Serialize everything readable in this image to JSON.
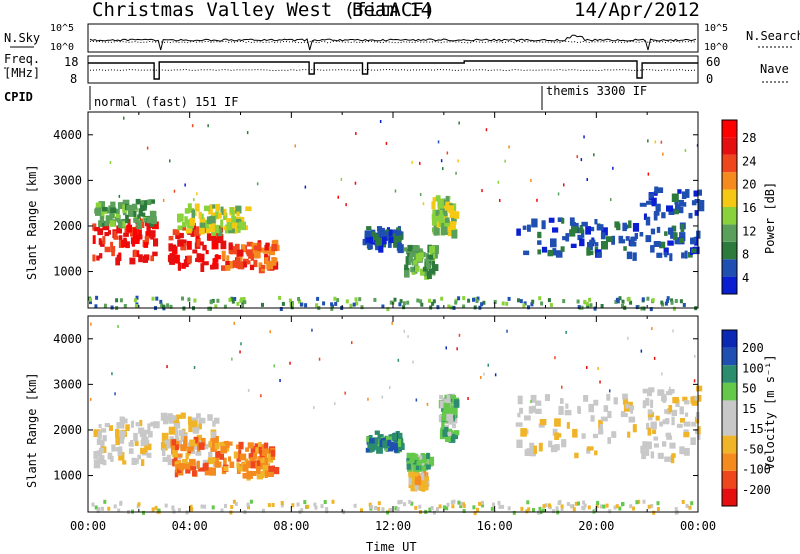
{
  "header": {
    "station": "Christmas Valley West (fitACF)",
    "beam": "Beam 14",
    "date": "14/Apr/2012"
  },
  "strip_panels": {
    "noise": {
      "left_label": "N.Sky",
      "right_label": "N.Search",
      "left_ticks": [
        "10^5",
        "10^0"
      ],
      "right_ticks": [
        "10^5",
        "10^0"
      ]
    },
    "frequency": {
      "left_label_1": "Freq.",
      "left_label_2": "[MHz]",
      "right_label": "Nave",
      "left_ticks": [
        "18",
        "8"
      ],
      "right_ticks": [
        "60",
        "0"
      ]
    },
    "cpid": {
      "label": "CPID",
      "modes": [
        "normal (fast) 151 IF",
        "themis 3300 IF"
      ]
    }
  },
  "colors": {
    "power_scale": [
      "#0a1ed2",
      "#1f4fb0",
      "#2c7a3c",
      "#5aa05a",
      "#8ad23c",
      "#f5c814",
      "#f58a1e",
      "#f0461e",
      "#e60f0f",
      "#ff0000"
    ],
    "velocity_scale": [
      "#e60f0f",
      "#f0461e",
      "#f58a1e",
      "#f0b428",
      "#c8c8c8",
      "#c8c8c8",
      "#64c84b",
      "#2c8c6e",
      "#1f4fb0",
      "#0a28b4"
    ]
  },
  "chart_data": [
    {
      "type": "heatmap",
      "name_panel": "power",
      "ylabel": "Slant Range [km]",
      "xlabel": "",
      "xlim": [
        0,
        24
      ],
      "ylim": [
        200,
        4500
      ],
      "yticks": [
        1000,
        2000,
        3000,
        4000
      ],
      "colorbar_label": "Power [dB]",
      "colorbar_ticks": [
        "28",
        "24",
        "20",
        "16",
        "12",
        "8",
        "4"
      ],
      "features": [
        {
          "t0": 0.1,
          "t1": 2.6,
          "r0": 1300,
          "r1": 2200,
          "level": 8
        },
        {
          "t0": 3.1,
          "t1": 5.2,
          "r0": 1150,
          "r1": 2100,
          "level": 8
        },
        {
          "t0": 5.2,
          "t1": 7.3,
          "r0": 1100,
          "r1": 1700,
          "level": 7
        },
        {
          "t0": 3.5,
          "t1": 6.3,
          "r0": 1900,
          "r1": 2500,
          "level": 4
        },
        {
          "t0": 0.2,
          "t1": 2.5,
          "r0": 2100,
          "r1": 2600,
          "level": 3
        },
        {
          "t0": 10.8,
          "t1": 12.3,
          "r0": 1600,
          "r1": 2000,
          "level": 1
        },
        {
          "t0": 12.4,
          "t1": 13.6,
          "r0": 1000,
          "r1": 1600,
          "level": 3
        },
        {
          "t0": 13.5,
          "t1": 14.4,
          "r0": 1900,
          "r1": 2700,
          "level": 4
        },
        {
          "t0": 16.8,
          "t1": 21.6,
          "r0": 1400,
          "r1": 2200,
          "level": 1
        },
        {
          "t0": 21.7,
          "t1": 24.0,
          "r0": 1400,
          "r1": 2900,
          "level": 1
        }
      ]
    },
    {
      "type": "heatmap",
      "name_panel": "velocity",
      "ylabel": "Slant Range [km]",
      "xlabel": "Time UT",
      "xlim": [
        0,
        24
      ],
      "ylim": [
        200,
        4500
      ],
      "yticks": [
        1000,
        2000,
        3000,
        4000
      ],
      "xticks": [
        "00:00",
        "04:00",
        "08:00",
        "12:00",
        "16:00",
        "20:00",
        "00:00"
      ],
      "colorbar_label": "Velocity [m s⁻¹]",
      "colorbar_ticks": [
        "200",
        "100",
        "50",
        "15",
        "-15",
        "-50",
        "-100",
        "-200"
      ],
      "features": [
        {
          "t0": 0.1,
          "t1": 2.6,
          "r0": 1300,
          "r1": 2300,
          "level": 4
        },
        {
          "t0": 2.8,
          "t1": 5.0,
          "r0": 1200,
          "r1": 2400,
          "level": 4
        },
        {
          "t0": 3.2,
          "t1": 5.4,
          "r0": 1100,
          "r1": 1900,
          "level": 2
        },
        {
          "t0": 5.4,
          "t1": 7.3,
          "r0": 1050,
          "r1": 1750,
          "level": 2
        },
        {
          "t0": 10.9,
          "t1": 12.3,
          "r0": 1600,
          "r1": 2000,
          "level": 7
        },
        {
          "t0": 12.5,
          "t1": 13.4,
          "r0": 1200,
          "r1": 1500,
          "level": 6
        },
        {
          "t0": 12.6,
          "t1": 13.2,
          "r0": 800,
          "r1": 1100,
          "level": 3
        },
        {
          "t0": 13.8,
          "t1": 14.4,
          "r0": 1900,
          "r1": 2800,
          "level": 6
        },
        {
          "t0": 16.8,
          "t1": 21.6,
          "r0": 1500,
          "r1": 2800,
          "level": 4
        },
        {
          "t0": 21.7,
          "t1": 24.0,
          "r0": 1400,
          "r1": 3000,
          "level": 4
        }
      ]
    }
  ]
}
